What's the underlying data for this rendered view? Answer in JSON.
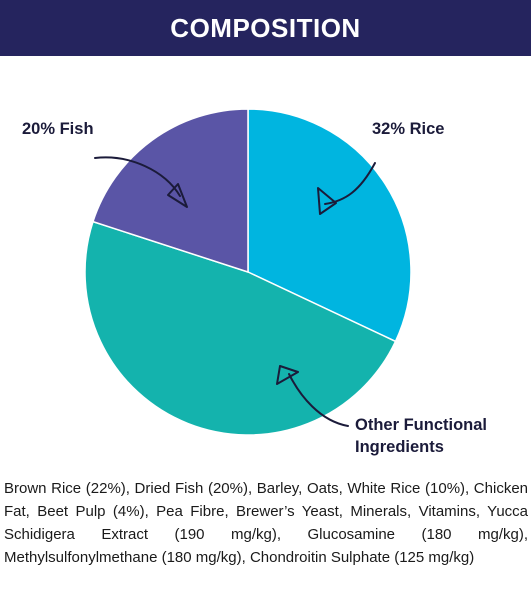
{
  "header": {
    "title": "COMPOSITION"
  },
  "chart_data": {
    "type": "pie",
    "slices": [
      {
        "label": "32% Rice",
        "value": 32,
        "color": "#00b5e0"
      },
      {
        "label": "Other Functional Ingredients",
        "value": 48,
        "color": "#14b3ad"
      },
      {
        "label": "20% Fish",
        "value": 20,
        "color": "#5a55a6"
      }
    ],
    "labels": {
      "rice": "32% Rice",
      "fish": "20% Fish",
      "other_line1": "Other Functional",
      "other_line2": "Ingredients"
    }
  },
  "composition": "Brown Rice (22%), Dried Fish (20%), Barley, Oats, White Rice (10%), Chicken Fat, Beet Pulp (4%), Pea Fibre, Brewer’s Yeast, Minerals, Vitamins, Yucca Schidigera Extract (190 mg/kg), Glucosamine (180 mg/kg), Methylsulfonylmethane (180 mg/kg), Chondroitin Sulphate (125 mg/kg)"
}
